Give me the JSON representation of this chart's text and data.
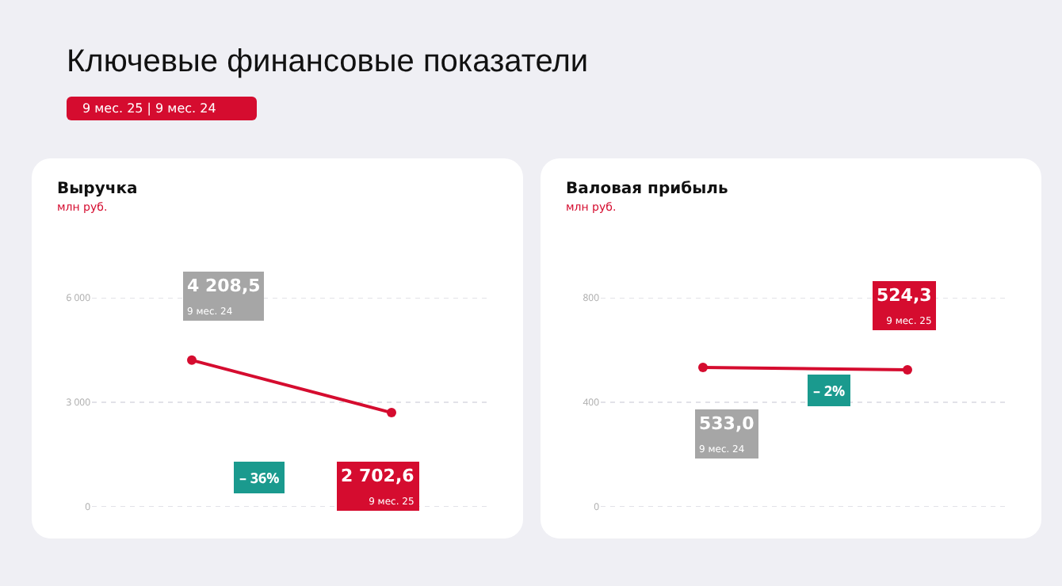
{
  "chart_data": [
    {
      "type": "other",
      "title": "Ключевые финансовые показатели",
      "annotations": [
        "9 мес. 25 | 9 мес. 24"
      ]
    },
    {
      "type": "line",
      "title": "Выручка",
      "subtitle": "млн руб.",
      "categories": [
        "9 мес. 24",
        "9 мес. 25"
      ],
      "series": [
        {
          "color": "#d50c2f",
          "values": [
            4208.5,
            2702.6
          ]
        }
      ],
      "value_labels": [
        "4 208,5",
        "2 702,6"
      ],
      "ylim": [
        0,
        6000
      ],
      "yticks": [
        0,
        {
          "value": 3000,
          "label": "3 000"
        },
        {
          "value": 6000,
          "label": "6 000"
        }
      ],
      "grid": "y",
      "tick_labels": "y",
      "marker": "circle",
      "line_style": "solid",
      "annotations": [
        "– 36%"
      ]
    },
    {
      "type": "line",
      "title": "Валовая прибыль",
      "subtitle": "млн руб.",
      "categories": [
        "9 мес. 24",
        "9 мес. 25"
      ],
      "series": [
        {
          "color": "#d50c2f",
          "values": [
            533.0,
            524.3
          ]
        }
      ],
      "value_labels": [
        "533,0",
        "524,3"
      ],
      "ylim": [
        0,
        800
      ],
      "yticks": [
        0,
        400,
        800
      ],
      "grid": "y",
      "tick_labels": "y",
      "marker": "circle",
      "line_style": "solid",
      "annotations": [
        "– 2%"
      ]
    }
  ]
}
